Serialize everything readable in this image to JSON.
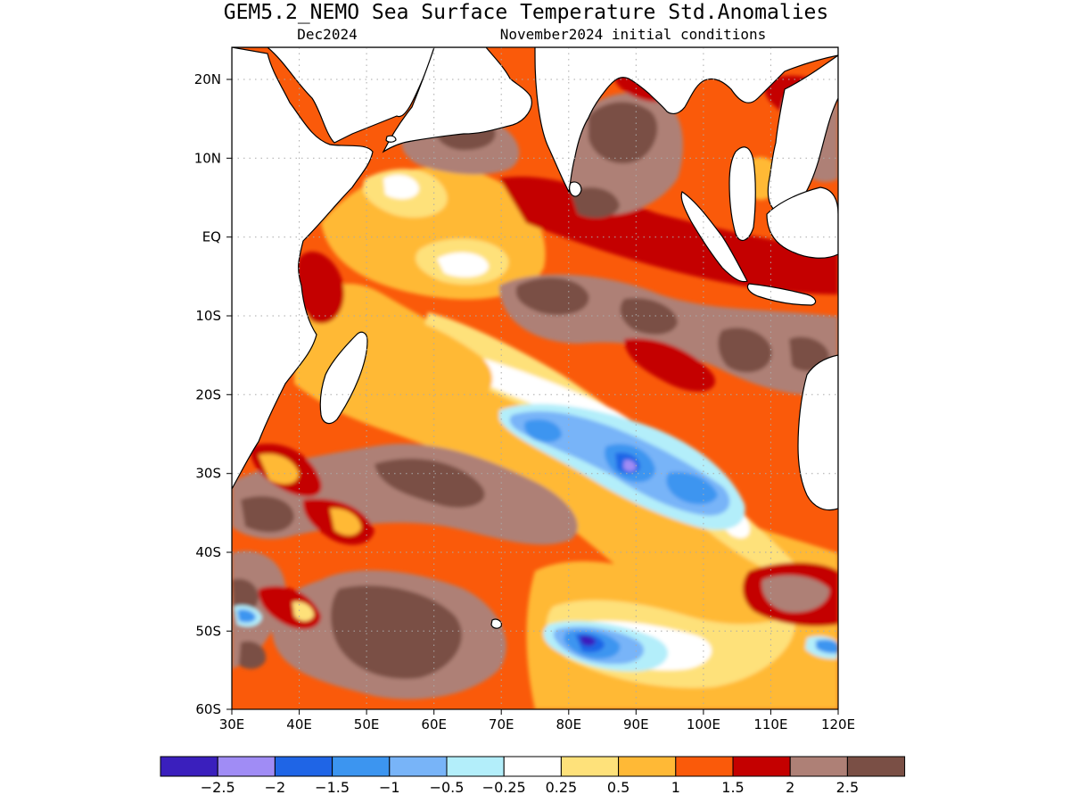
{
  "title": "GEM5.2_NEMO Sea Surface Temperature Std.Anomalies",
  "subtitle_left": "Dec2024",
  "subtitle_right": "November2024 initial conditions",
  "map": {
    "lon_range": [
      30,
      120
    ],
    "lat_range": [
      -60,
      24
    ],
    "lon_ticks": [
      "30E",
      "40E",
      "50E",
      "60E",
      "70E",
      "80E",
      "90E",
      "100E",
      "110E",
      "120E"
    ],
    "lat_ticks": [
      "20N",
      "10N",
      "EQ",
      "10S",
      "20S",
      "30S",
      "40S",
      "50S",
      "60S"
    ],
    "grid": true
  },
  "colorbar": {
    "colors": [
      "#3a1fbd",
      "#a08cf5",
      "#1f65e6",
      "#3c95f0",
      "#78b4f8",
      "#b3eefa",
      "#ffffff",
      "#fee17a",
      "#ffb936",
      "#fa5a0a",
      "#c40000",
      "#ae8076",
      "#7a4f45"
    ],
    "labels": [
      "−2.5",
      "−2",
      "−1.5",
      "−1",
      "−0.5",
      "−0.25",
      "0.25",
      "0.5",
      "1",
      "1.5",
      "2",
      "2.5"
    ]
  },
  "colors": {
    "land": "#ffffff",
    "coast": "#000000",
    "grid": "#aaaaaa"
  }
}
